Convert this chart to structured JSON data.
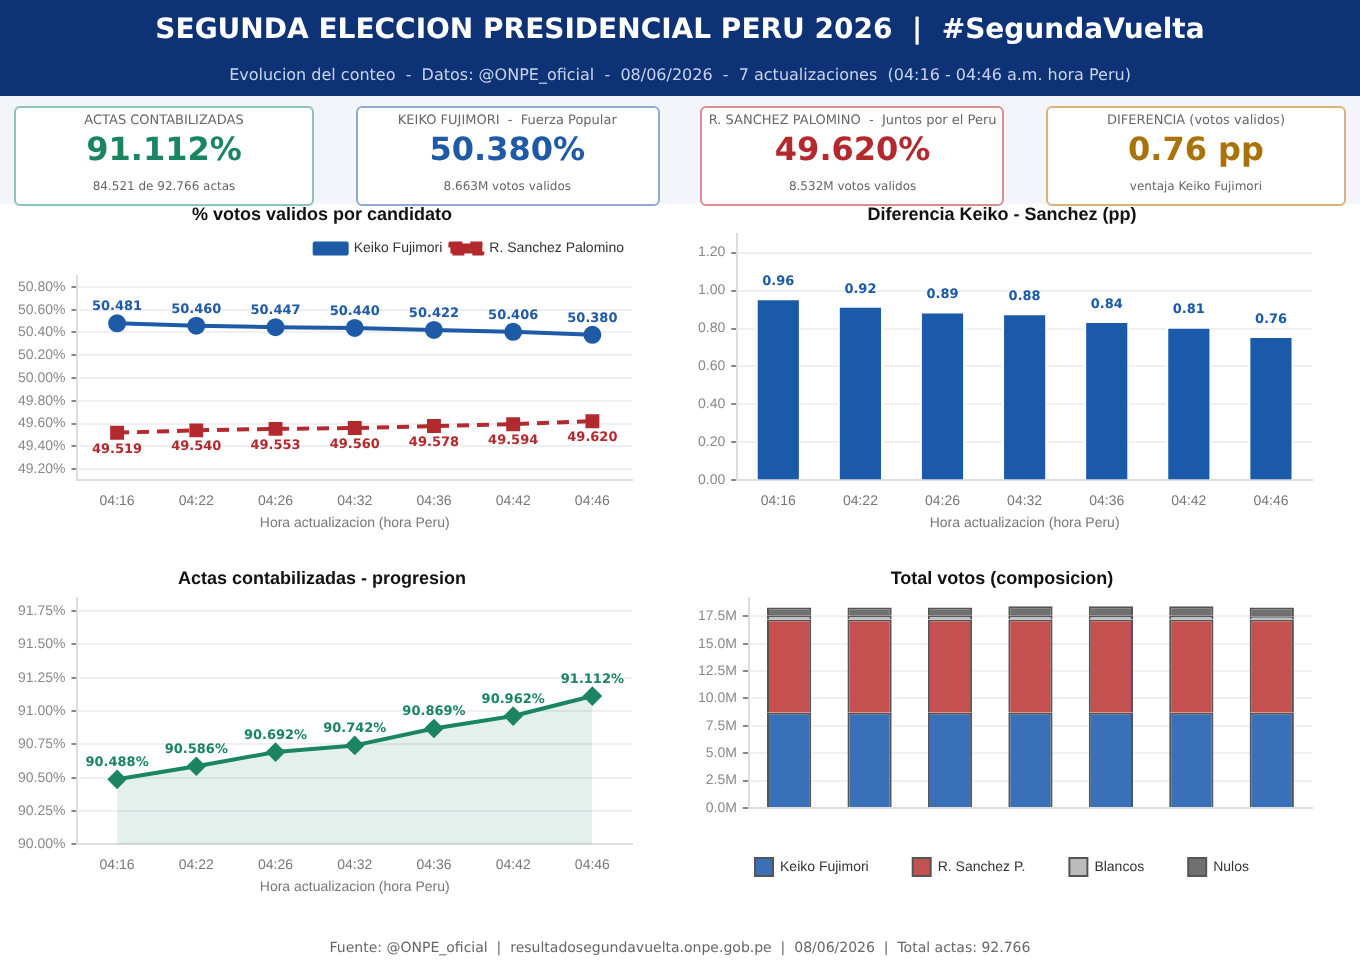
{
  "chart_data": [
    {
      "type": "other",
      "title": "SEGUNDA ELECCION PRESIDENCIAL PERU 2026  |  #SegundaVuelta",
      "subtitle": "Evolucion del conteo  -  Datos: @ONPE_oficial  -  08/06/2026  -  7 actualizaciones  (04:16 - 04:46 a.m. hora Peru)",
      "annotations": [
        "ACTAS CONTABILIZADAS",
        "91.112%",
        "84.521 de 92.766 actas",
        "KEIKO FUJIMORI  -  Fuerza Popular",
        "50.380%",
        "8.663M votos validos",
        "R. SANCHEZ PALOMINO  -  Juntos por el Peru",
        "49.620%",
        "8.532M votos validos",
        "DIFERENCIA (votos validos)",
        "0.76 pp",
        "ventaja Keiko Fujimori"
      ]
    },
    {
      "type": "line",
      "title": "% votos validos por candidato",
      "xlabel": "Hora actualizacion (hora Peru)",
      "categories": [
        "04:16",
        "04:22",
        "04:26",
        "04:32",
        "04:36",
        "04:42",
        "04:46"
      ],
      "series": [
        {
          "name": "Keiko Fujimori",
          "color": "#1f5aa6",
          "marker": "circle",
          "line_style": "solid",
          "values": [
            50.481,
            50.46,
            50.447,
            50.44,
            50.422,
            50.406,
            50.38
          ],
          "value_labels": [
            "50.481",
            "50.460",
            "50.447",
            "50.440",
            "50.422",
            "50.406",
            "50.380"
          ]
        },
        {
          "name": "R. Sanchez Palomino",
          "color": "#b22a2e",
          "marker": "square",
          "line_style": "dashed",
          "values": [
            49.519,
            49.54,
            49.553,
            49.56,
            49.578,
            49.594,
            49.62
          ],
          "value_labels": [
            "49.519",
            "49.540",
            "49.553",
            "49.560",
            "49.578",
            "49.594",
            "49.620"
          ]
        }
      ],
      "ylim": [
        49.1,
        50.9
      ],
      "yticks": [
        {
          "value": 49.2,
          "label": "49.20%"
        },
        {
          "value": 49.4,
          "label": "49.40%"
        },
        {
          "value": 49.6,
          "label": "49.60%"
        },
        {
          "value": 49.8,
          "label": "49.80%"
        },
        {
          "value": 50.0,
          "label": "50.00%"
        },
        {
          "value": 50.2,
          "label": "50.20%"
        },
        {
          "value": 50.4,
          "label": "50.40%"
        },
        {
          "value": 50.6,
          "label": "50.60%"
        },
        {
          "value": 50.8,
          "label": "50.80%"
        }
      ],
      "grid": "y",
      "legend": "top right"
    },
    {
      "type": "bar",
      "title": "Diferencia Keiko - Sanchez (pp)",
      "xlabel": "Hora actualizacion (hora Peru)",
      "categories": [
        "04:16",
        "04:22",
        "04:26",
        "04:32",
        "04:36",
        "04:42",
        "04:46"
      ],
      "values": [
        0.96,
        0.92,
        0.89,
        0.88,
        0.84,
        0.81,
        0.76
      ],
      "color": "#1a5aa8",
      "ylim": [
        0,
        1.3
      ],
      "yticks": [
        {
          "value": 0,
          "label": "0.00"
        },
        {
          "value": 0.2,
          "label": "0.20"
        },
        {
          "value": 0.4,
          "label": "0.40"
        },
        {
          "value": 0.6,
          "label": "0.60"
        },
        {
          "value": 0.8,
          "label": "0.80"
        },
        {
          "value": 1.0,
          "label": "1.00"
        },
        {
          "value": 1.2,
          "label": "1.20"
        }
      ],
      "grid": "y",
      "data_labels": true
    },
    {
      "type": "area",
      "title": "Actas contabilizadas - progresion",
      "xlabel": "Hora actualizacion (hora Peru)",
      "categories": [
        "04:16",
        "04:22",
        "04:26",
        "04:32",
        "04:36",
        "04:42",
        "04:46"
      ],
      "values": [
        90.488,
        90.586,
        90.692,
        90.742,
        90.869,
        90.962,
        91.112
      ],
      "color": "#1a8560",
      "marker": "diamond",
      "value_labels": [
        "90.488%",
        "90.586%",
        "90.692%",
        "90.742%",
        "90.869%",
        "90.962%",
        "91.112%"
      ],
      "ylim": [
        90,
        91.85
      ],
      "yticks": [
        {
          "value": 90,
          "label": "90.00%"
        },
        {
          "value": 90.25,
          "label": "90.25%"
        },
        {
          "value": 90.5,
          "label": "90.50%"
        },
        {
          "value": 90.75,
          "label": "90.75%"
        },
        {
          "value": 91,
          "label": "91.00%"
        },
        {
          "value": 91.25,
          "label": "91.25%"
        },
        {
          "value": 91.5,
          "label": "91.50%"
        },
        {
          "value": 91.75,
          "label": "91.75%"
        }
      ],
      "grid": "y"
    },
    {
      "type": "bar",
      "stacked": true,
      "title": "Total votos (composicion)",
      "categories": [
        null,
        null,
        null,
        null,
        null,
        null,
        null
      ],
      "series": [
        {
          "name": "Keiko Fujimori",
          "color": "#3a70b8",
          "values": [
            8.7,
            8.7,
            8.7,
            8.7,
            8.7,
            8.7,
            8.7
          ]
        },
        {
          "name": "R. Sanchez P.",
          "color": "#c55050",
          "values": [
            8.5,
            8.5,
            8.5,
            8.5,
            8.5,
            8.5,
            8.5
          ]
        },
        {
          "name": "Blancos",
          "color": "#bcbcbc",
          "values": [
            0.4,
            0.4,
            0.4,
            0.4,
            0.4,
            0.4,
            0.3
          ]
        },
        {
          "name": "Nulos",
          "color": "#707070",
          "values": [
            0.7,
            0.7,
            0.7,
            0.8,
            0.8,
            0.8,
            0.8
          ]
        }
      ],
      "ylim": [
        0,
        19.2
      ],
      "yticks": [
        {
          "value": 0,
          "label": "0.0M"
        },
        {
          "value": 2.5,
          "label": "2.5M"
        },
        {
          "value": 5,
          "label": "5.0M"
        },
        {
          "value": 7.5,
          "label": "7.5M"
        },
        {
          "value": 10,
          "label": "10.0M"
        },
        {
          "value": 12.5,
          "label": "12.5M"
        },
        {
          "value": 15,
          "label": "15.0M"
        },
        {
          "value": 17.5,
          "label": "17.5M"
        }
      ],
      "grid": "y",
      "legend": "bottom",
      "tick_labels": "y"
    },
    {
      "type": "other",
      "annotations": [
        "Fuente: @ONPE_oficial  |  resultadosegundavuelta.onpe.gob.pe  |  08/06/2026  |  Total actas: 92.766"
      ]
    }
  ]
}
